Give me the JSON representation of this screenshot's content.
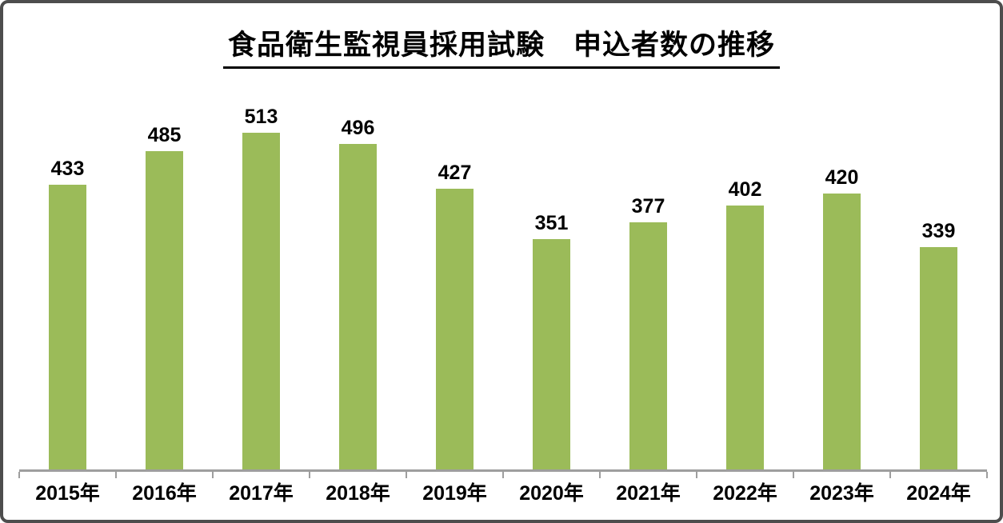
{
  "chart_data": {
    "type": "bar",
    "title": "食品衛生監視員採用試験　申込者数の推移",
    "categories": [
      "2015年",
      "2016年",
      "2017年",
      "2018年",
      "2019年",
      "2020年",
      "2021年",
      "2022年",
      "2023年",
      "2024年"
    ],
    "values": [
      433,
      485,
      513,
      496,
      427,
      351,
      377,
      402,
      420,
      339
    ],
    "xlabel": "",
    "ylabel": "",
    "ylim": [
      0,
      600
    ],
    "grid": false,
    "legend": "none",
    "data_labels": "above-bars",
    "bar_color": "#9bbb59",
    "axis_color": "#9e9e9e",
    "text_color": "#000000",
    "title_underline": true
  }
}
